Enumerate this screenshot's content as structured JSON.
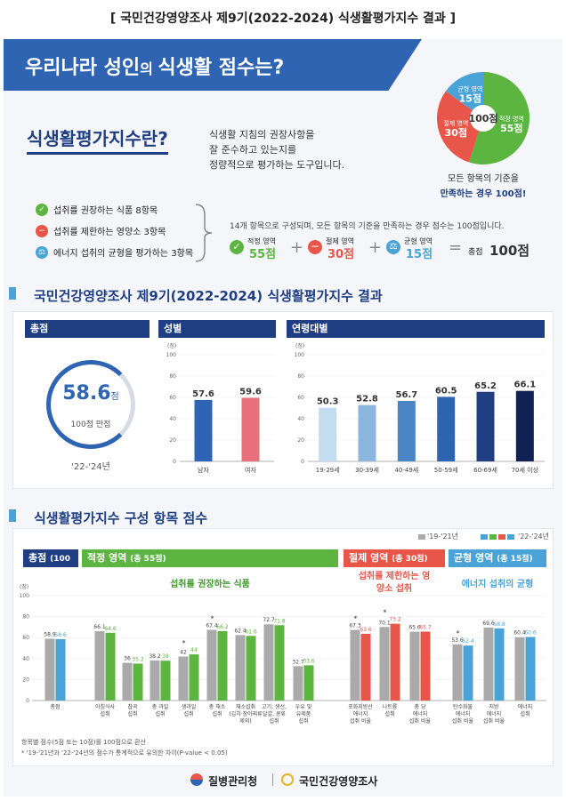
{
  "page_title": "[ 국민건강영양조사  제9기(2022-2024)  식생활평가지수  결과 ]",
  "banner": {
    "part1": "우리나라 성인",
    "part2": "의 ",
    "part3": "식생활 점수는?"
  },
  "definition": {
    "heading": "식생활평가지수란?",
    "line1": "식생활 지침의 권장사항을",
    "line2": "잘 준수하고 있는지를",
    "line3": "정량적으로 평가하는 도구입니다."
  },
  "pie": {
    "slices": [
      {
        "label": "적정 영역",
        "score": "55점",
        "value": 55,
        "color": "#5bb540"
      },
      {
        "label": "절제 영역",
        "score": "30점",
        "value": 30,
        "color": "#e8564a"
      },
      {
        "label": "균형 영역",
        "score": "15점",
        "value": 15,
        "color": "#4aa3d6"
      }
    ],
    "center": "100점",
    "note1": "모든 항목의 기준을",
    "note2": "만족하는 경우 100점!"
  },
  "items": [
    {
      "text": "섭취를 권장하는 식품 8항목",
      "icon": "check-icon",
      "color": "#5bb540"
    },
    {
      "text": "섭취를 제한하는 영양소 3항목",
      "icon": "minus-icon",
      "color": "#e8564a"
    },
    {
      "text": "에너지 섭취의 균형을 평가하는 3항목",
      "icon": "scale-icon",
      "color": "#4aa3d6"
    }
  ],
  "formula": {
    "note": "14개 항목으로 구성되며, 모든 항목의 기준을 만족하는 경우 점수는 100점입니다.",
    "t1_label": "적정 영역",
    "t1_score": "55점",
    "t2_label": "절제 영역",
    "t2_score": "30점",
    "t3_label": "균형 영역",
    "t3_score": "15점",
    "total_label": "총점",
    "total_score": "100점"
  },
  "section1": {
    "title": "국민건강영양조사 제9기(2022-2024) 식생활평가지수 결과",
    "total_header": "총점",
    "sex_header": "성별",
    "age_header": "연령대별",
    "total_value": "58.6",
    "total_unit": "점",
    "total_sub": "100점 만점",
    "total_period": "'22-'24년",
    "unit": "(점)"
  },
  "section2": {
    "title": "식생활평가지수 구성 항목 점수",
    "legend_old": "'19-'21년",
    "legend_new": "'22-'24년",
    "g_total": "총점",
    "g_total_sub": "(100점)",
    "g_adequate": "적정 영역",
    "g_adequate_sub": "(총 55점)",
    "g_moderation": "절제 영역",
    "g_moderation_sub": "(총 30점)",
    "g_balance": "균형 영역",
    "g_balance_sub": "(총 15점)",
    "sub_adequate": "섭취를 권장하는 식품",
    "sub_moderation": "섭취를 제한하는 영양소 섭취",
    "sub_balance": "에너지 섭취의 균형",
    "unit": "(점)",
    "foot1": "항목별 점수(5점 또는 10점)를 100점으로 환산",
    "foot2": "* '19-'21년과 '22-'24년의 점수가 통계적으로 유의한 차이(P-value < 0.05)"
  },
  "footer": {
    "org1": "질병관리청",
    "org2": "국민건강영양조사"
  },
  "colors": {
    "navy": "#1f3f82",
    "blue": "#2f64b3",
    "green": "#5bb540",
    "red": "#e8564a",
    "sky": "#4aa3d6",
    "grey": "#aaaaaa"
  },
  "chart_data": [
    {
      "type": "bar",
      "title": "성별",
      "ylabel": "(점)",
      "ylim": [
        0,
        100
      ],
      "categories": [
        "남자",
        "여자"
      ],
      "values": [
        57.6,
        59.6
      ]
    },
    {
      "type": "bar",
      "title": "연령대별",
      "ylabel": "(점)",
      "ylim": [
        0,
        100
      ],
      "categories": [
        "19-29세",
        "30-39세",
        "40-49세",
        "50-59세",
        "60-69세",
        "70세 이상"
      ],
      "values": [
        50.3,
        52.8,
        56.7,
        60.5,
        65.2,
        66.1
      ]
    },
    {
      "type": "bar",
      "title": "식생활평가지수 구성 항목 점수",
      "ylabel": "(점)",
      "ylim": [
        0,
        100
      ],
      "categories": [
        "총점",
        "아침식사 섭취",
        "잡곡 섭취",
        "총 과일 섭취",
        "생과일 섭취",
        "총 채소 섭취",
        "채소섭취 (김치·장아찌류 제외)",
        "고기, 생선, 달걀, 콩류 섭취",
        "우유 및 유제품 섭취",
        "포화지방산 에너지 섭취 비율",
        "나트륨 섭취",
        "총 당 에너지 섭취 비율",
        "탄수화물 에너지 섭취 비율",
        "지방 에너지 섭취 비율",
        "에너지 섭취"
      ],
      "series": [
        {
          "name": "'19-'21년",
          "values": [
            58.9,
            66.1,
            36.0,
            38.2,
            42.0,
            67.4,
            62.4,
            72.7,
            32.7,
            67.3,
            70.1,
            65.6,
            53.6,
            69.6,
            60.4
          ]
        },
        {
          "name": "'22-'24년",
          "values": [
            58.6,
            64.6,
            35.2,
            38.0,
            44.0,
            66.2,
            61.6,
            71.8,
            33.6,
            63.6,
            73.2,
            65.7,
            52.4,
            68.8,
            60.6
          ]
        }
      ],
      "significant": [
        false,
        false,
        false,
        false,
        true,
        true,
        false,
        false,
        false,
        true,
        true,
        false,
        true,
        false,
        false
      ]
    }
  ]
}
